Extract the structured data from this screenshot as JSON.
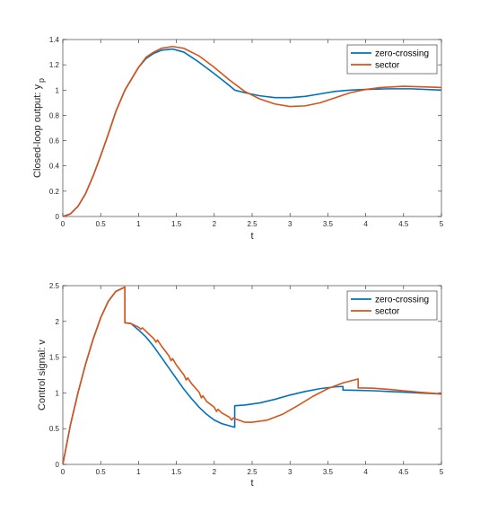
{
  "chart_data": [
    {
      "type": "line",
      "xlabel": "t",
      "ylabel": "Closed-loop output: y",
      "ylabel_sub": "p",
      "xlim": [
        0,
        5
      ],
      "ylim": [
        0,
        1.4
      ],
      "xticks": [
        0,
        0.5,
        1,
        1.5,
        2,
        2.5,
        3,
        3.5,
        4,
        4.5,
        5
      ],
      "yticks": [
        0,
        0.2,
        0.4,
        0.6,
        0.8,
        1,
        1.2,
        1.4
      ],
      "xtick_labels": [
        "0",
        "0.5",
        "1",
        "1.5",
        "2",
        "2.5",
        "3",
        "3.5",
        "4",
        "4.5",
        "5"
      ],
      "ytick_labels": [
        "0",
        "0.2",
        "0.4",
        "0.6",
        "0.8",
        "1",
        "1.2",
        "1.4"
      ],
      "grid": false,
      "legend": "top-right",
      "series": [
        {
          "name": "zero-crossing",
          "color": "#0072BD",
          "points": [
            [
              0,
              0
            ],
            [
              0.1,
              0.02
            ],
            [
              0.2,
              0.08
            ],
            [
              0.3,
              0.18
            ],
            [
              0.4,
              0.32
            ],
            [
              0.5,
              0.48
            ],
            [
              0.6,
              0.65
            ],
            [
              0.7,
              0.83
            ],
            [
              0.82,
              1.0
            ],
            [
              0.9,
              1.08
            ],
            [
              1.0,
              1.18
            ],
            [
              1.1,
              1.25
            ],
            [
              1.2,
              1.29
            ],
            [
              1.3,
              1.315
            ],
            [
              1.45,
              1.325
            ],
            [
              1.6,
              1.3
            ],
            [
              1.8,
              1.22
            ],
            [
              2.0,
              1.13
            ],
            [
              2.15,
              1.06
            ],
            [
              2.27,
              1.0
            ],
            [
              2.4,
              0.98
            ],
            [
              2.6,
              0.955
            ],
            [
              2.8,
              0.94
            ],
            [
              3.0,
              0.94
            ],
            [
              3.2,
              0.95
            ],
            [
              3.4,
              0.97
            ],
            [
              3.6,
              0.99
            ],
            [
              3.8,
              1.0
            ],
            [
              4.0,
              1.005
            ],
            [
              4.3,
              1.01
            ],
            [
              4.6,
              1.01
            ],
            [
              5.0,
              1.0
            ]
          ]
        },
        {
          "name": "sector",
          "color": "#D95319",
          "points": [
            [
              0,
              0
            ],
            [
              0.1,
              0.02
            ],
            [
              0.2,
              0.08
            ],
            [
              0.3,
              0.18
            ],
            [
              0.4,
              0.32
            ],
            [
              0.5,
              0.48
            ],
            [
              0.6,
              0.65
            ],
            [
              0.7,
              0.83
            ],
            [
              0.82,
              1.0
            ],
            [
              0.9,
              1.08
            ],
            [
              1.0,
              1.18
            ],
            [
              1.1,
              1.26
            ],
            [
              1.2,
              1.3
            ],
            [
              1.3,
              1.33
            ],
            [
              1.45,
              1.345
            ],
            [
              1.6,
              1.33
            ],
            [
              1.8,
              1.27
            ],
            [
              2.0,
              1.18
            ],
            [
              2.2,
              1.08
            ],
            [
              2.4,
              0.99
            ],
            [
              2.6,
              0.93
            ],
            [
              2.8,
              0.89
            ],
            [
              3.0,
              0.87
            ],
            [
              3.2,
              0.875
            ],
            [
              3.4,
              0.9
            ],
            [
              3.6,
              0.94
            ],
            [
              3.8,
              0.98
            ],
            [
              4.0,
              1.005
            ],
            [
              4.2,
              1.02
            ],
            [
              4.5,
              1.03
            ],
            [
              4.8,
              1.025
            ],
            [
              5.0,
              1.02
            ]
          ]
        }
      ]
    },
    {
      "type": "line",
      "xlabel": "t",
      "ylabel": "Control signal: v",
      "xlim": [
        0,
        5
      ],
      "ylim": [
        0,
        2.5
      ],
      "xticks": [
        0,
        0.5,
        1,
        1.5,
        2,
        2.5,
        3,
        3.5,
        4,
        4.5,
        5
      ],
      "yticks": [
        0,
        0.5,
        1,
        1.5,
        2,
        2.5
      ],
      "xtick_labels": [
        "0",
        "0.5",
        "1",
        "1.5",
        "2",
        "2.5",
        "3",
        "3.5",
        "4",
        "4.5",
        "5"
      ],
      "ytick_labels": [
        "0",
        "0.5",
        "1",
        "1.5",
        "2",
        "2.5"
      ],
      "grid": false,
      "legend": "top-right",
      "series": [
        {
          "name": "zero-crossing",
          "color": "#0072BD",
          "points": [
            [
              0,
              0
            ],
            [
              0.1,
              0.55
            ],
            [
              0.2,
              1.0
            ],
            [
              0.3,
              1.4
            ],
            [
              0.4,
              1.75
            ],
            [
              0.5,
              2.05
            ],
            [
              0.6,
              2.28
            ],
            [
              0.7,
              2.42
            ],
            [
              0.82,
              2.48
            ],
            [
              0.82,
              1.98
            ],
            [
              0.9,
              1.97
            ],
            [
              1.0,
              1.88
            ],
            [
              1.1,
              1.78
            ],
            [
              1.2,
              1.65
            ],
            [
              1.3,
              1.5
            ],
            [
              1.4,
              1.35
            ],
            [
              1.5,
              1.2
            ],
            [
              1.6,
              1.05
            ],
            [
              1.7,
              0.92
            ],
            [
              1.8,
              0.8
            ],
            [
              1.9,
              0.7
            ],
            [
              2.0,
              0.62
            ],
            [
              2.1,
              0.57
            ],
            [
              2.2,
              0.54
            ],
            [
              2.27,
              0.52
            ],
            [
              2.27,
              0.82
            ],
            [
              2.4,
              0.83
            ],
            [
              2.6,
              0.86
            ],
            [
              2.8,
              0.91
            ],
            [
              3.0,
              0.97
            ],
            [
              3.2,
              1.02
            ],
            [
              3.4,
              1.06
            ],
            [
              3.6,
              1.085
            ],
            [
              3.7,
              1.09
            ],
            [
              3.7,
              1.04
            ],
            [
              3.9,
              1.035
            ],
            [
              4.1,
              1.03
            ],
            [
              4.3,
              1.02
            ],
            [
              4.5,
              1.01
            ],
            [
              4.7,
              1.0
            ],
            [
              5.0,
              0.985
            ]
          ]
        },
        {
          "name": "sector",
          "color": "#D95319",
          "points": [
            [
              0,
              0
            ],
            [
              0.1,
              0.55
            ],
            [
              0.2,
              1.0
            ],
            [
              0.3,
              1.4
            ],
            [
              0.4,
              1.75
            ],
            [
              0.5,
              2.05
            ],
            [
              0.6,
              2.28
            ],
            [
              0.7,
              2.42
            ],
            [
              0.82,
              2.48
            ],
            [
              0.82,
              1.98
            ],
            [
              0.9,
              1.97
            ],
            [
              1.0,
              1.92
            ],
            [
              1.03,
              1.89
            ],
            [
              1.05,
              1.91
            ],
            [
              1.1,
              1.86
            ],
            [
              1.2,
              1.76
            ],
            [
              1.23,
              1.71
            ],
            [
              1.25,
              1.74
            ],
            [
              1.3,
              1.66
            ],
            [
              1.4,
              1.52
            ],
            [
              1.43,
              1.45
            ],
            [
              1.45,
              1.48
            ],
            [
              1.5,
              1.39
            ],
            [
              1.6,
              1.25
            ],
            [
              1.63,
              1.18
            ],
            [
              1.65,
              1.21
            ],
            [
              1.7,
              1.13
            ],
            [
              1.8,
              1.01
            ],
            [
              1.83,
              0.93
            ],
            [
              1.85,
              0.96
            ],
            [
              1.9,
              0.88
            ],
            [
              2.0,
              0.8
            ],
            [
              2.03,
              0.74
            ],
            [
              2.05,
              0.77
            ],
            [
              2.1,
              0.72
            ],
            [
              2.2,
              0.66
            ],
            [
              2.23,
              0.62
            ],
            [
              2.25,
              0.65
            ],
            [
              2.3,
              0.63
            ],
            [
              2.4,
              0.59
            ],
            [
              2.5,
              0.59
            ],
            [
              2.7,
              0.62
            ],
            [
              2.9,
              0.7
            ],
            [
              3.1,
              0.82
            ],
            [
              3.3,
              0.95
            ],
            [
              3.5,
              1.06
            ],
            [
              3.7,
              1.14
            ],
            [
              3.9,
              1.195
            ],
            [
              3.9,
              1.07
            ],
            [
              4.1,
              1.065
            ],
            [
              4.3,
              1.05
            ],
            [
              4.5,
              1.03
            ],
            [
              4.7,
              1.01
            ],
            [
              5.0,
              0.985
            ]
          ]
        }
      ]
    }
  ]
}
